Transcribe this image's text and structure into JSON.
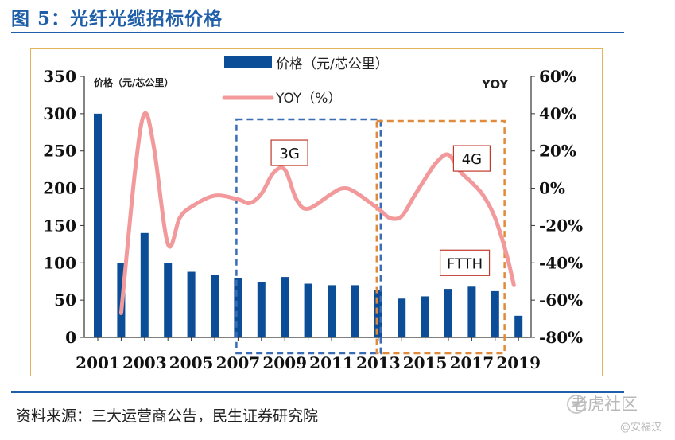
{
  "figure": {
    "title": "图 5：光纤光缆招标价格",
    "source": "资料来源：三大运营商公告，民生证券研究院",
    "watermark": "老虎社区",
    "watermark_sub": "@安福汉"
  },
  "chart_data": {
    "type": "bar+line",
    "title": "",
    "categories": [
      "2001",
      "2002",
      "2003",
      "2004",
      "2005",
      "2006",
      "2007",
      "2008",
      "2009",
      "2010",
      "2011",
      "2012",
      "2013",
      "2014",
      "2015",
      "2016",
      "2017",
      "2018",
      "2019"
    ],
    "x_tick_labels": [
      "2001",
      "2003",
      "2005",
      "2007",
      "2009",
      "2011",
      "2013",
      "2015",
      "2017",
      "2019"
    ],
    "bar_series": {
      "name": "价格（元/芯公里）",
      "values": [
        300,
        100,
        140,
        100,
        88,
        84,
        80,
        74,
        81,
        72,
        70,
        70,
        64,
        52,
        55,
        65,
        68,
        62,
        29
      ],
      "color": "#0b4d96"
    },
    "line_series": {
      "name": "YOY（%）",
      "points": [
        {
          "x": 2002,
          "y": -67
        },
        {
          "x": 2002.6,
          "y": 10
        },
        {
          "x": 2003,
          "y": 40
        },
        {
          "x": 2003.4,
          "y": 22
        },
        {
          "x": 2004,
          "y": -30
        },
        {
          "x": 2004.5,
          "y": -16
        },
        {
          "x": 2005,
          "y": -10
        },
        {
          "x": 2006,
          "y": -4
        },
        {
          "x": 2007,
          "y": -6
        },
        {
          "x": 2007.5,
          "y": -8
        },
        {
          "x": 2008,
          "y": -3
        },
        {
          "x": 2008.5,
          "y": 8
        },
        {
          "x": 2009,
          "y": 10
        },
        {
          "x": 2009.5,
          "y": -6
        },
        {
          "x": 2010,
          "y": -11
        },
        {
          "x": 2011,
          "y": -3
        },
        {
          "x": 2011.5,
          "y": 0
        },
        {
          "x": 2012,
          "y": -2
        },
        {
          "x": 2013,
          "y": -11
        },
        {
          "x": 2013.5,
          "y": -16
        },
        {
          "x": 2014,
          "y": -15
        },
        {
          "x": 2014.5,
          "y": -5
        },
        {
          "x": 2015,
          "y": 5
        },
        {
          "x": 2015.5,
          "y": 14
        },
        {
          "x": 2016,
          "y": 18
        },
        {
          "x": 2016.5,
          "y": 9
        },
        {
          "x": 2017,
          "y": 3
        },
        {
          "x": 2017.5,
          "y": -4
        },
        {
          "x": 2018,
          "y": -16
        },
        {
          "x": 2018.5,
          "y": -36
        },
        {
          "x": 2018.8,
          "y": -52
        }
      ],
      "color": "#f2999b"
    },
    "left_axis": {
      "ylim": [
        0,
        350
      ],
      "ticks": [
        0,
        50,
        100,
        150,
        200,
        250,
        300,
        350
      ],
      "label": "价格（元/芯公里）"
    },
    "right_axis": {
      "ylim": [
        -80,
        60
      ],
      "ticks": [
        "60%",
        "40%",
        "20%",
        "0%",
        "-20%",
        "-40%",
        "-60%",
        "-80%"
      ],
      "tick_values": [
        60,
        40,
        20,
        0,
        -20,
        -40,
        -60,
        -80
      ],
      "label": "YOY"
    },
    "legend": {
      "bar_label": "价格（元/芯公里）",
      "line_label": "YOY（%）",
      "position": "top-center"
    },
    "annotations": [
      {
        "label": "3G",
        "from": 2007,
        "to": 2013,
        "color": "#3a6db5",
        "box_year": 2009.2,
        "box_yoy": 19
      },
      {
        "label": "4G",
        "from": 2013,
        "to": 2018.3,
        "color": "#e08b3c",
        "box_year": 2017,
        "box_yoy": 16
      },
      {
        "label": "FTTH",
        "from": 2013,
        "to": 2018.3,
        "color": "#e08b3c",
        "box_year": 2016.7,
        "box_yoy": -40
      }
    ]
  }
}
